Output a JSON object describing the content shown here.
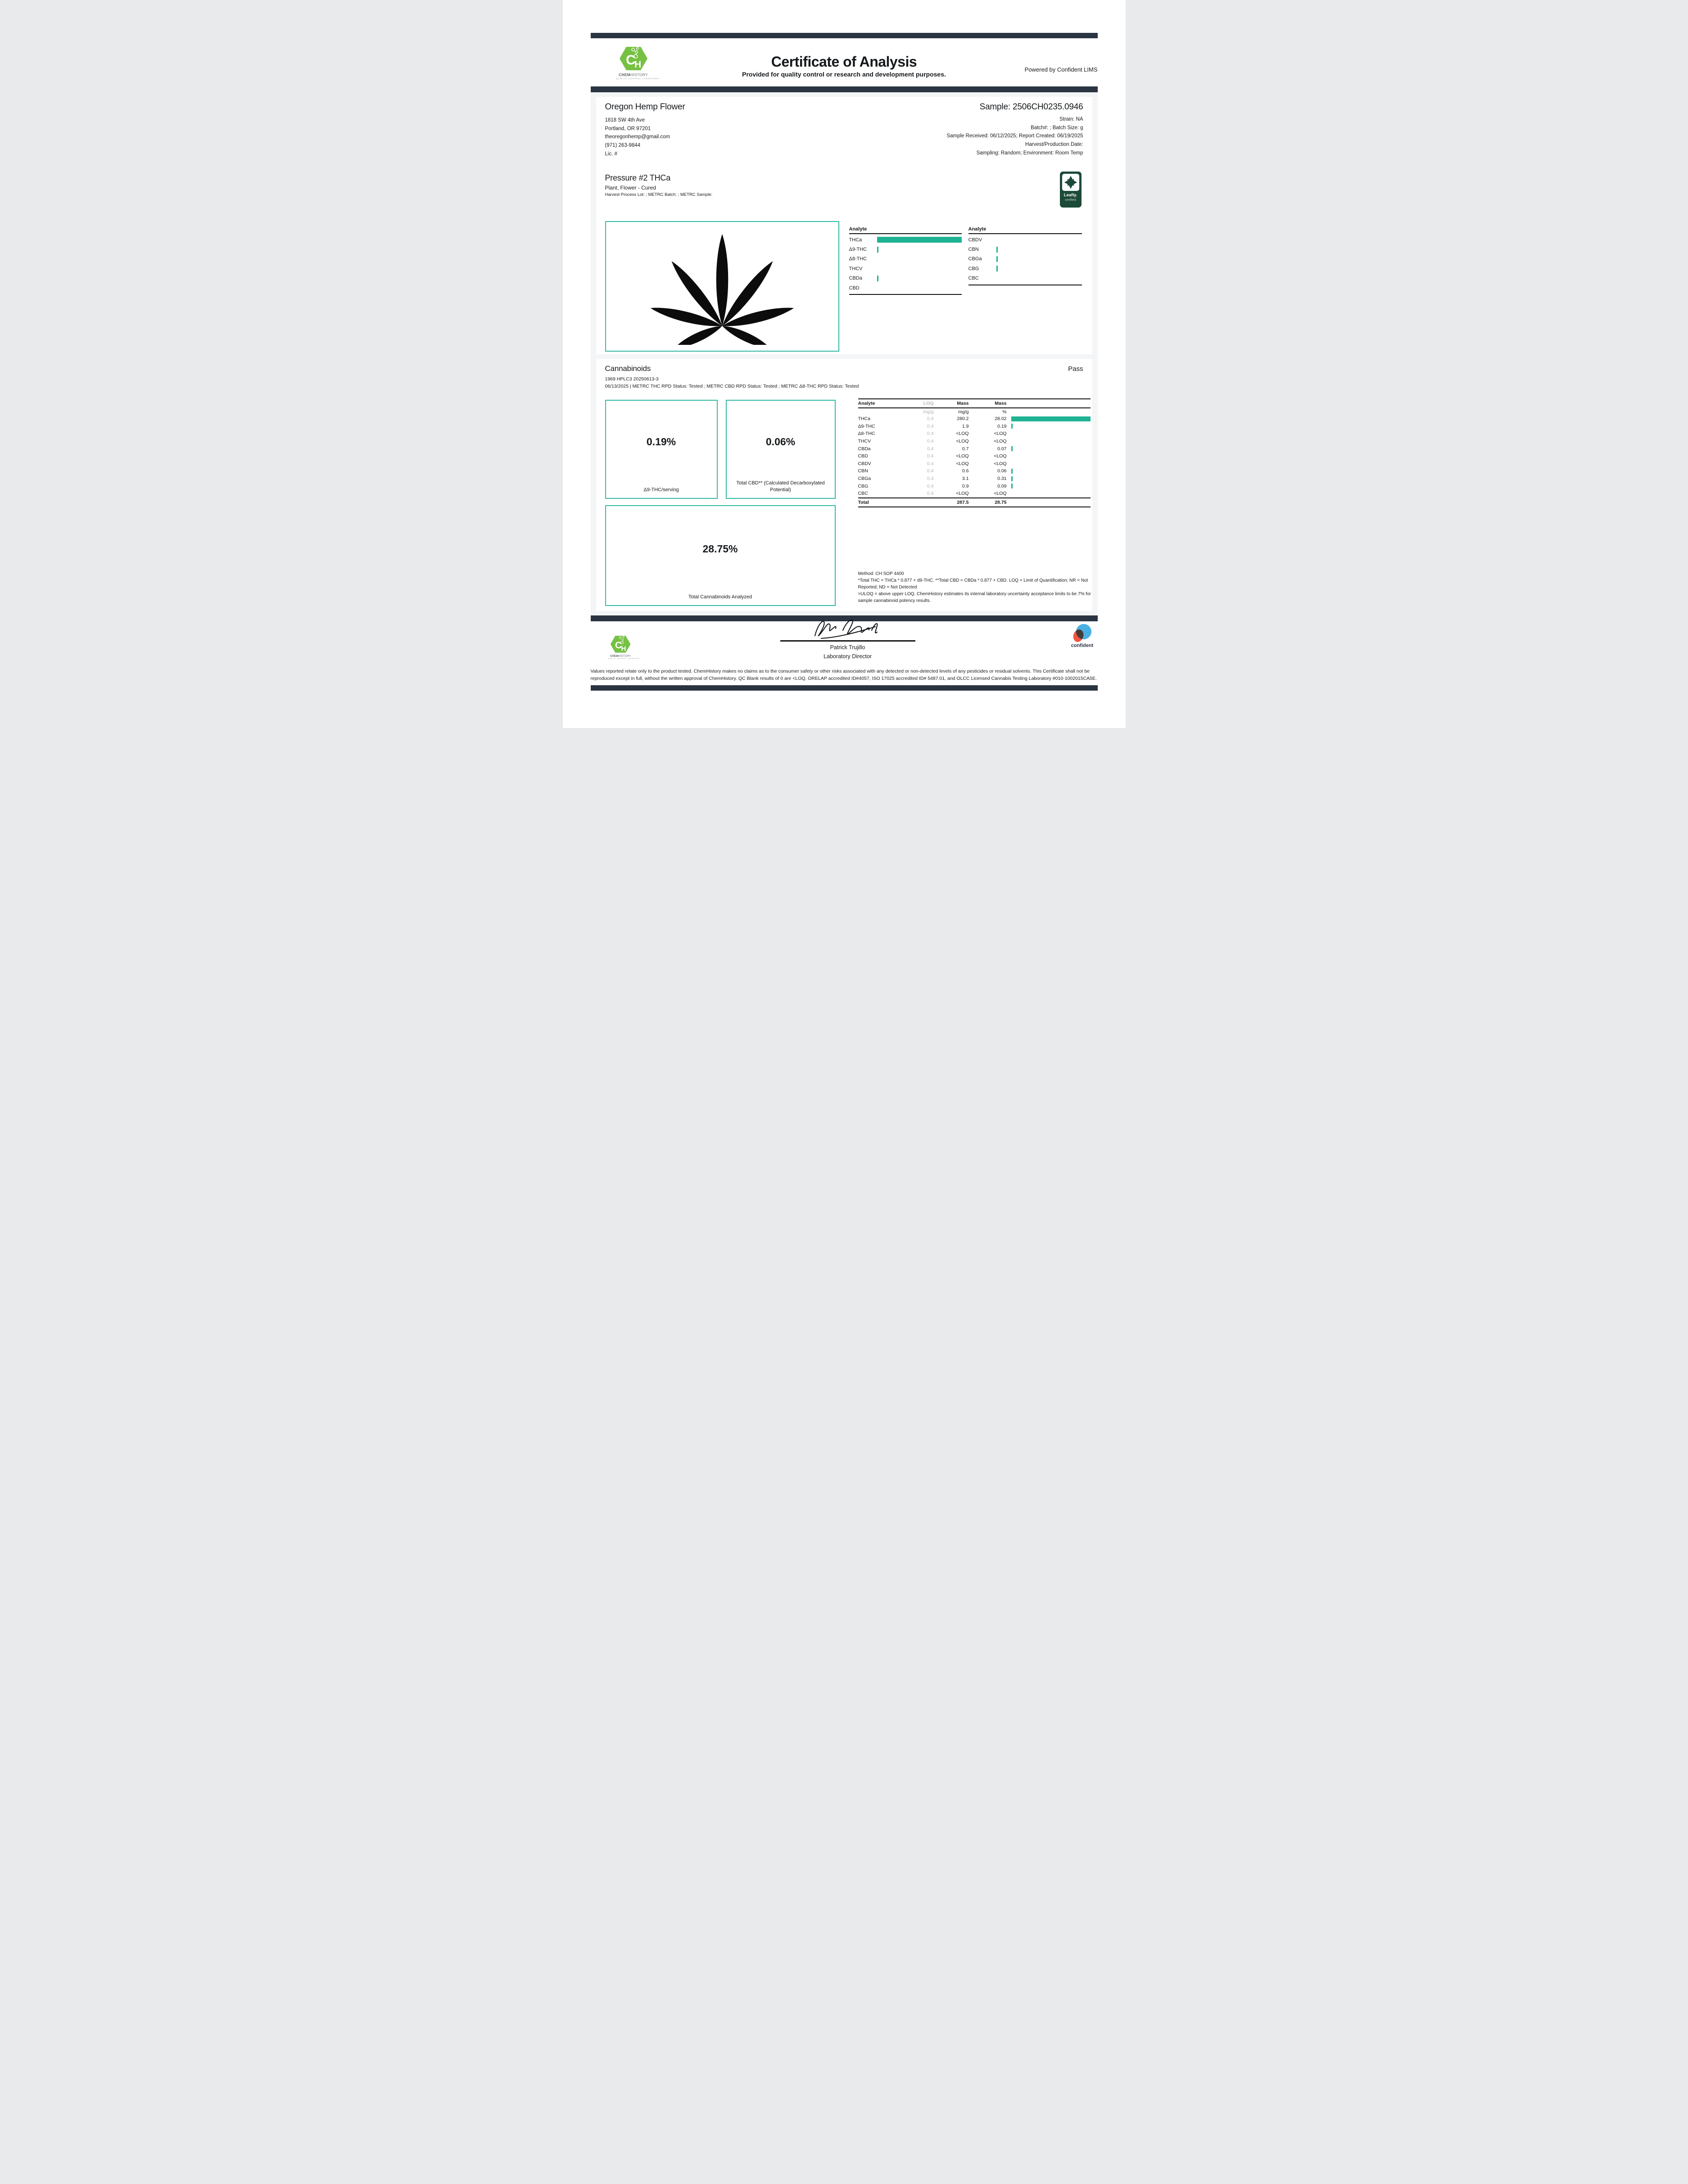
{
  "colors": {
    "accent_teal": "#1fb394",
    "box_border_teal": "#2fb9a5",
    "navy_bar": "#2a3442",
    "page_gray": "#f4f5f6",
    "loq_gray": "#b3b3b3",
    "chemhistory_green": "#76c043",
    "leafly_green": "#1c4a38",
    "confident_blue": "#4aafe3",
    "confident_orange": "#f0563f"
  },
  "header": {
    "title": "Certificate of Analysis",
    "subtitle": "Provided for quality control or research and development purposes.",
    "powered_by": "Powered by Confident LIMS",
    "logo": {
      "monogram_c": "C",
      "monogram_h": "H",
      "name_bold": "CHEM",
      "name_light": "HISTORY",
      "tagline": "QUALITY CONTROL LABORATORY"
    }
  },
  "client": {
    "name": "Oregon Hemp Flower",
    "address_line1": "1818 SW 4th Ave",
    "address_line2": "Portland, OR 97201",
    "email": "theoregonhemp@gmail.com",
    "phone": "(971) 263-9844",
    "license": "Lic. #"
  },
  "sample": {
    "title": "Sample: 2506CH0235.0946",
    "strain": "Strain: NA",
    "batch": "Batch#: ; Batch Size:  g",
    "received": "Sample Received: 06/12/2025; Report Created: 06/19/2025",
    "harvest": "Harvest/Production Date:",
    "sampling": "Sampling: Random; Environment: Room Temp"
  },
  "product": {
    "name": "Pressure #2 THCa",
    "type": "Plant, Flower - Cured",
    "lots": "Harvest Process Lot: ; METRC Batch: ; METRC Sample:"
  },
  "leafly_badge": {
    "brand": "Leafly.",
    "label": "certified"
  },
  "analyte_chart": {
    "left": {
      "header": "Analyte",
      "rows": [
        {
          "label": "THCa",
          "pct": 28.02
        },
        {
          "label": "Δ9-THC",
          "pct": 0.19
        },
        {
          "label": "Δ8-THC",
          "pct": 0
        },
        {
          "label": "THCV",
          "pct": 0
        },
        {
          "label": "CBDa",
          "pct": 0.07
        },
        {
          "label": "CBD",
          "pct": 0
        }
      ]
    },
    "right": {
      "header": "Analyte",
      "rows": [
        {
          "label": "CBDV",
          "pct": 0
        },
        {
          "label": "CBN",
          "pct": 0.06
        },
        {
          "label": "CBGa",
          "pct": 0.31
        },
        {
          "label": "CBG",
          "pct": 0.09
        },
        {
          "label": "CBC",
          "pct": 0
        }
      ]
    }
  },
  "cannabinoids": {
    "heading": "Cannabinoids",
    "status": "Pass",
    "run_line": "1969 HPLC3 20250613-3",
    "metrc_line": "06/13/2025 | METRC THC RPD Status: Tested ; METRC CBD RPD Status: Tested ; METRC Δ8-THC RPD Status: Tested",
    "stat_boxes": [
      {
        "value": "0.19%",
        "label": "Δ9-THC/serving"
      },
      {
        "value": "0.06%",
        "label": "Total CBD** (Calculated Decarboxylated Potential)"
      },
      {
        "value": "28.75%",
        "label": "Total Cannabinoids Analyzed"
      }
    ],
    "table": {
      "headers": [
        "Analyte",
        "LOQ",
        "Mass",
        "Mass"
      ],
      "units": [
        "",
        "mg/g",
        "mg/g",
        "%"
      ],
      "rows": [
        {
          "analyte": "THCa",
          "loq": "0.4",
          "mgg": "280.2",
          "pct_label": "28.02",
          "pct": 28.02
        },
        {
          "analyte": "Δ9-THC",
          "loq": "0.4",
          "mgg": "1.9",
          "pct_label": "0.19",
          "pct": 0.19
        },
        {
          "analyte": "Δ8-THC",
          "loq": "0.4",
          "mgg": "<LOQ",
          "pct_label": "<LOQ",
          "pct": 0
        },
        {
          "analyte": "THCV",
          "loq": "0.4",
          "mgg": "<LOQ",
          "pct_label": "<LOQ",
          "pct": 0
        },
        {
          "analyte": "CBDa",
          "loq": "0.4",
          "mgg": "0.7",
          "pct_label": "0.07",
          "pct": 0.07
        },
        {
          "analyte": "CBD",
          "loq": "0.4",
          "mgg": "<LOQ",
          "pct_label": "<LOQ",
          "pct": 0
        },
        {
          "analyte": "CBDV",
          "loq": "0.4",
          "mgg": "<LOQ",
          "pct_label": "<LOQ",
          "pct": 0
        },
        {
          "analyte": "CBN",
          "loq": "0.4",
          "mgg": "0.6",
          "pct_label": "0.06",
          "pct": 0.06
        },
        {
          "analyte": "CBGa",
          "loq": "0.4",
          "mgg": "3.1",
          "pct_label": "0.31",
          "pct": 0.31
        },
        {
          "analyte": "CBG",
          "loq": "0.4",
          "mgg": "0.9",
          "pct_label": "0.09",
          "pct": 0.09
        },
        {
          "analyte": "CBC",
          "loq": "0.4",
          "mgg": "<LOQ",
          "pct_label": "<LOQ",
          "pct": 0
        }
      ],
      "total": {
        "label": "Total",
        "mgg": "287.5",
        "pct_label": "28.75"
      }
    },
    "method_lines": [
      "Method: CH SOP 4400",
      "*Total THC = THCa * 0.877 + d9-THC. **Total CBD = CBDa * 0.877 + CBD. LOQ = Limit of Quantification; NR = Not Reported; ND = Not Detected",
      ">ULOQ = above upper LOQ. ChemHistory estimates its internal laboratory uncertainty acceptance limits to be 7% for sample cannabinoid potency results."
    ]
  },
  "footer": {
    "signatory": "Patrick Trujillo",
    "role": "Laboratory Director",
    "confident_brand": "confident",
    "disclaimer": "Values reported relate only to the product tested. ChemHistory makes no claims as to the consumer safety or other risks associated with any detected or non-detected levels of any pesticides or residual solvents. This Certificate shall not be reproduced except in full, without the written approval of ChemHistory. QC Blank results of 0 are <LOQ.  ORELAP accredited ID#4057, ISO 17025 accredited ID# 5487.01, and OLCC Licensed Cannabis Testing Laboratory #010-1002015CA5E."
  },
  "chart_data": {
    "type": "bar",
    "title": "Cannabinoid profile (Mass %)",
    "categories": [
      "THCa",
      "Δ9-THC",
      "Δ8-THC",
      "THCV",
      "CBDa",
      "CBD",
      "CBDV",
      "CBN",
      "CBGa",
      "CBG",
      "CBC"
    ],
    "values": [
      28.02,
      0.19,
      0,
      0,
      0.07,
      0,
      0,
      0.06,
      0.31,
      0.09,
      0
    ],
    "value_labels": [
      "28.02",
      "0.19",
      "<LOQ",
      "<LOQ",
      "0.07",
      "<LOQ",
      "<LOQ",
      "0.06",
      "0.31",
      "0.09",
      "<LOQ"
    ],
    "values_mgg": [
      280.2,
      1.9,
      0,
      0,
      0.7,
      0,
      0,
      0.6,
      3.1,
      0.9,
      0
    ],
    "total_mgg": 287.5,
    "total_pct": 28.75,
    "xlabel": "Mass %",
    "ylabel": "Analyte",
    "bar_scale_max": 28.02,
    "legend": false,
    "grid": false
  }
}
